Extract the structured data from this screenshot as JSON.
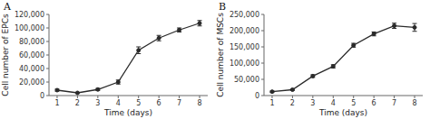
{
  "chart_data": [
    {
      "type": "line",
      "title": "A",
      "x_label": "Time (days)",
      "y_label": "Cell number of EPCs",
      "x": [
        1,
        2,
        3,
        4,
        5,
        6,
        7,
        8
      ],
      "values": [
        8000,
        4000,
        9000,
        20000,
        67000,
        85000,
        97000,
        107000
      ],
      "yerr": [
        1500,
        800,
        1500,
        3000,
        5000,
        4000,
        3000,
        4000
      ],
      "color": "#2a2a2a",
      "marker": "circle",
      "grid": false,
      "xlim": [
        0.6,
        8.4
      ],
      "xticks": [
        1,
        2,
        3,
        4,
        5,
        6,
        7,
        8
      ],
      "ylim": [
        0,
        120000
      ],
      "yticks": [
        0,
        {
          "value": 20000,
          "label": "20,000"
        },
        {
          "value": 40000,
          "label": "40,000"
        },
        {
          "value": 60000,
          "label": "60,000"
        },
        {
          "value": 80000,
          "label": "80,000"
        },
        {
          "value": 100000,
          "label": "100,000"
        },
        {
          "value": 120000,
          "label": "120,000"
        }
      ]
    },
    {
      "type": "line",
      "title": "B",
      "x_label": "Time (days)",
      "y_label": "Cell number of MSCs",
      "x": [
        1,
        2,
        3,
        4,
        5,
        6,
        7,
        8
      ],
      "values": [
        12000,
        18000,
        60000,
        90000,
        155000,
        190000,
        215000,
        210000
      ],
      "yerr": [
        2000,
        2000,
        4000,
        5000,
        6000,
        6000,
        8000,
        12000
      ],
      "color": "#2a2a2a",
      "marker": "circle",
      "grid": false,
      "xlim": [
        0.6,
        8.4
      ],
      "xticks": [
        1,
        2,
        3,
        4,
        5,
        6,
        7,
        8
      ],
      "ylim": [
        0,
        250000
      ],
      "yticks": [
        0,
        {
          "value": 50000,
          "label": "50,000"
        },
        {
          "value": 100000,
          "label": "100,000"
        },
        {
          "value": 150000,
          "label": "150,000"
        },
        {
          "value": 200000,
          "label": "200,000"
        },
        {
          "value": 250000,
          "label": "250,000"
        }
      ]
    }
  ]
}
